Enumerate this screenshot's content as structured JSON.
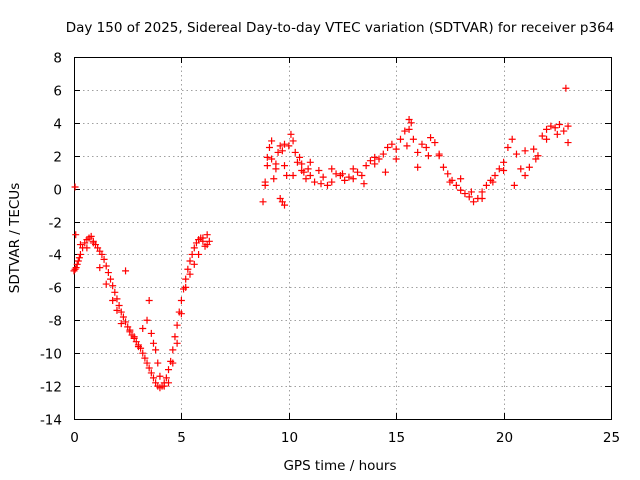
{
  "chart_data": {
    "type": "scatter",
    "title": "Day 150 of 2025, Sidereal Day-to-day VTEC variation (SDTVAR) for receiver p364",
    "xlabel": "GPS time / hours",
    "ylabel": "SDTVAR / TECUs",
    "xlim": [
      0,
      25
    ],
    "ylim": [
      -14,
      8
    ],
    "xticks": [
      "0",
      "5",
      "10",
      "15",
      "20",
      "25"
    ],
    "yticks": [
      "-14",
      "-12",
      "-10",
      "-8",
      "-6",
      "-4",
      "-2",
      "0",
      "2",
      "4",
      "6",
      "8"
    ],
    "grid": true,
    "marker": "+",
    "color": "#ff0000",
    "series": [
      {
        "x": [
          0.0,
          0.05,
          0.1,
          0.15,
          0.2,
          0.25,
          0.3,
          0.4,
          0.5,
          0.6,
          0.7,
          0.8,
          0.9,
          1.0,
          1.1,
          1.2,
          1.3,
          1.4,
          1.5,
          1.6,
          1.7,
          1.8,
          1.9,
          2.0,
          2.1,
          2.2,
          2.3,
          2.4,
          2.5,
          2.6,
          2.7,
          2.8,
          2.9,
          3.0,
          3.1,
          3.2,
          3.3,
          3.4,
          3.5,
          3.6,
          3.7,
          3.8,
          3.9,
          4.0,
          4.1,
          4.2,
          4.3,
          4.4,
          4.5,
          4.6,
          4.7,
          4.8,
          4.9,
          5.0,
          5.1,
          5.2,
          5.3,
          5.4,
          5.5,
          5.6,
          5.7,
          5.8,
          5.9,
          6.0,
          6.1,
          6.2,
          6.3,
          0.05,
          0.08,
          0.3,
          0.6,
          0.9,
          1.2,
          1.5,
          1.8,
          2.0,
          2.2,
          2.4,
          2.6,
          2.8,
          3.0,
          3.2,
          3.4,
          3.5,
          3.6,
          3.7,
          3.8,
          3.9,
          4.0,
          4.2,
          4.4,
          4.6,
          4.8,
          5.0,
          5.2,
          5.4,
          5.6,
          5.8,
          6.0,
          6.2
        ],
        "y": [
          -5.0,
          -4.9,
          -4.8,
          -4.6,
          -4.4,
          -4.2,
          -4.0,
          -3.6,
          -3.3,
          -3.1,
          -3.0,
          -2.9,
          -3.2,
          -3.4,
          -3.6,
          -3.8,
          -4.0,
          -4.3,
          -4.7,
          -5.1,
          -5.5,
          -5.9,
          -6.3,
          -6.7,
          -7.1,
          -7.5,
          -7.8,
          -8.1,
          -8.4,
          -8.7,
          -8.9,
          -9.1,
          -9.3,
          -9.5,
          -9.7,
          -10.0,
          -10.3,
          -10.6,
          -10.9,
          -11.2,
          -11.5,
          -11.8,
          -12.0,
          -12.1,
          -12.0,
          -11.8,
          -11.5,
          -11.0,
          -10.5,
          -9.8,
          -9.0,
          -8.3,
          -7.5,
          -6.8,
          -6.1,
          -5.5,
          -4.9,
          -4.4,
          -4.0,
          -3.6,
          -3.3,
          -3.1,
          -3.0,
          -3.2,
          -3.5,
          -3.4,
          -3.2,
          0.1,
          -2.8,
          -3.4,
          -3.6,
          -3.3,
          -4.8,
          -5.8,
          -6.8,
          -7.4,
          -8.2,
          -5.0,
          -8.6,
          -9.0,
          -9.6,
          -8.5,
          -8.0,
          -6.8,
          -8.8,
          -9.4,
          -9.8,
          -10.6,
          -11.4,
          -12.0,
          -11.8,
          -10.6,
          -9.4,
          -7.6,
          -6.0,
          -5.2,
          -4.6,
          -4.0,
          -3.0,
          -2.8
        ]
      },
      {
        "x": [
          8.8,
          8.9,
          9.0,
          9.1,
          9.2,
          9.3,
          9.4,
          9.5,
          9.6,
          9.7,
          9.8,
          9.9,
          10.0,
          10.1,
          10.2,
          10.3,
          10.4,
          10.5,
          10.6,
          10.7,
          10.8,
          10.9,
          11.0,
          11.2,
          11.4,
          11.6,
          11.8,
          12.0,
          12.2,
          12.4,
          12.6,
          12.8,
          13.0,
          13.2,
          13.4,
          13.6,
          13.8,
          14.0,
          14.2,
          14.4,
          14.6,
          14.8,
          15.0,
          15.2,
          15.4,
          15.6,
          15.8,
          16.0,
          16.2,
          16.4,
          16.6,
          16.8,
          17.0,
          17.2,
          17.4,
          17.6,
          17.8,
          18.0,
          18.2,
          18.4,
          18.6,
          18.8,
          19.0,
          19.2,
          19.4,
          19.6,
          19.8,
          20.0,
          20.2,
          20.4,
          20.6,
          20.8,
          21.0,
          21.2,
          21.4,
          21.6,
          21.8,
          22.0,
          22.2,
          22.4,
          22.6,
          22.8,
          23.0,
          8.9,
          9.0,
          9.2,
          9.4,
          9.6,
          9.8,
          10.2,
          10.6,
          11.0,
          11.5,
          12.0,
          12.5,
          13.0,
          13.5,
          14.0,
          14.5,
          15.0,
          15.5,
          16.0,
          16.5,
          17.0,
          17.5,
          18.0,
          18.5,
          19.0,
          19.5,
          20.0,
          20.5,
          21.0,
          21.5,
          22.0,
          22.5,
          23.0,
          9.8,
          9.7,
          15.7,
          15.6,
          22.9
        ],
        "y": [
          -0.8,
          0.2,
          1.4,
          2.5,
          1.8,
          0.6,
          1.2,
          2.2,
          2.6,
          2.3,
          1.4,
          0.8,
          2.6,
          3.3,
          2.9,
          2.2,
          1.6,
          1.9,
          1.5,
          1.0,
          0.6,
          1.2,
          0.8,
          0.4,
          1.1,
          0.7,
          0.2,
          0.4,
          0.9,
          0.8,
          0.5,
          0.7,
          1.2,
          1.0,
          0.8,
          1.4,
          1.7,
          1.9,
          1.8,
          2.1,
          2.5,
          2.7,
          2.4,
          3.0,
          3.5,
          4.2,
          3.0,
          2.2,
          2.7,
          2.5,
          3.1,
          2.8,
          2.0,
          1.3,
          0.9,
          0.5,
          0.2,
          -0.1,
          -0.3,
          -0.5,
          -0.8,
          -0.6,
          -0.2,
          0.2,
          0.5,
          0.8,
          1.2,
          1.6,
          2.5,
          3.0,
          2.1,
          1.2,
          0.8,
          1.3,
          2.4,
          2.0,
          3.2,
          3.6,
          3.8,
          3.7,
          3.9,
          3.5,
          3.8,
          0.4,
          1.9,
          2.9,
          1.5,
          -0.6,
          2.7,
          0.8,
          1.1,
          1.6,
          0.3,
          1.2,
          0.9,
          0.6,
          0.3,
          1.5,
          1.0,
          1.8,
          2.6,
          1.3,
          2.0,
          2.1,
          0.4,
          0.6,
          -0.2,
          -0.6,
          0.4,
          1.1,
          0.2,
          2.3,
          1.8,
          3.0,
          3.3,
          2.8,
          -1.0,
          -0.8,
          4.0,
          3.6,
          6.1
        ]
      }
    ]
  }
}
